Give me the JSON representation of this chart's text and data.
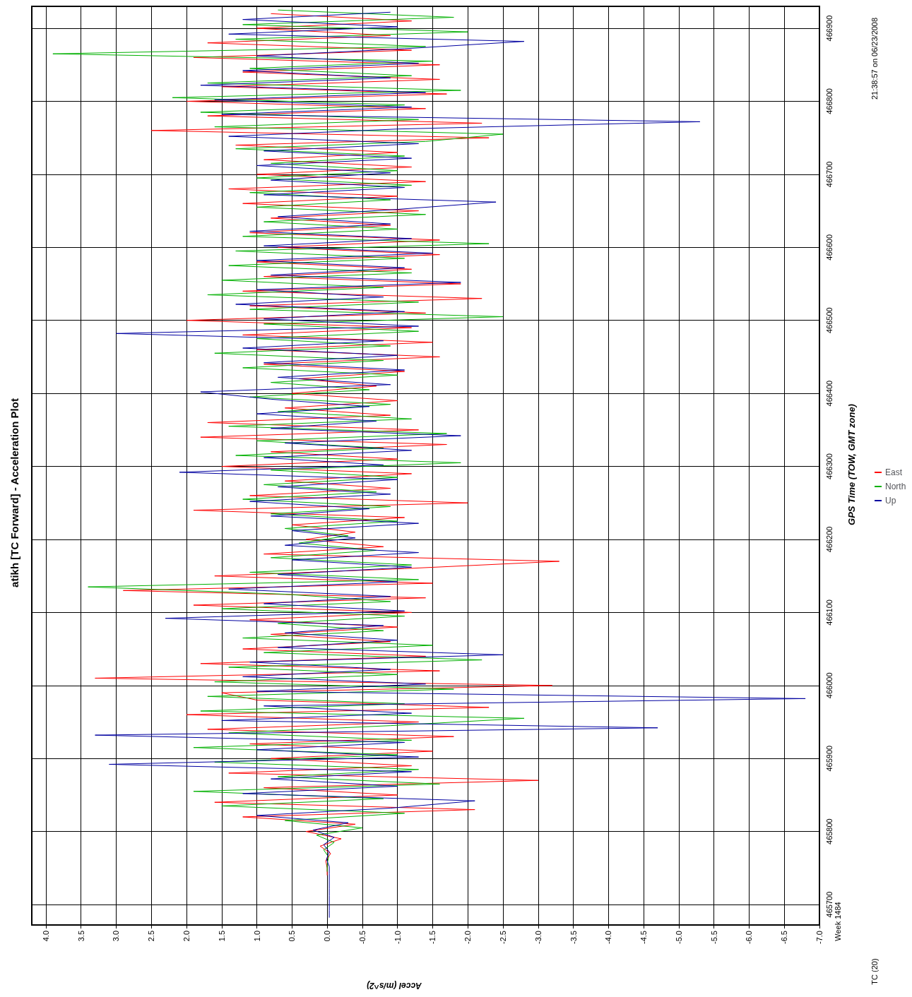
{
  "chart_data": {
    "type": "line",
    "title": "atikh [TC Forward] - Acceleration Plot",
    "xlabel": "Accel (m/s^2)",
    "ylabel": "GPS Time (TOW, GMT zone)",
    "annotations": [
      "Week 1484",
      "TC (20)",
      "21:38:57 on 06/23/2008"
    ],
    "series": [
      {
        "name": "East",
        "color": "#ff0000",
        "x": [
          null,
          null,
          null,
          null,
          null,
          null,
          0,
          0,
          0.02,
          -0.05,
          0.1,
          -0.2,
          0.3,
          -0.4,
          1.2,
          -2.1,
          1.6,
          -1.0,
          0.9,
          -3.0,
          1.4,
          -1.2,
          0.8,
          -1.5,
          1.1,
          -1.8,
          1.7,
          -1.3,
          2.0,
          -2.3,
          1.0,
          1.5,
          -3.2,
          3.3,
          -1.6,
          1.8,
          -1.4,
          1.2,
          -0.9,
          0.8,
          -1.0,
          1.1,
          -1.2,
          1.9,
          -1.4,
          2.9,
          -1.5,
          1.6,
          -1.1,
          -3.3,
          0.9,
          -0.8,
          0.3,
          -0.4,
          0.5,
          -1.1,
          1.9,
          -2.0,
          1.1,
          -0.9,
          0.6,
          -1.2,
          1.5,
          -1.0,
          0.8,
          -1.7,
          1.8,
          -1.3,
          1.7,
          -0.9,
          0.6,
          -1.0,
          0.5,
          -0.7,
          0.4,
          -1.1,
          0.9,
          -1.6,
          1.0,
          -1.5,
          1.2,
          -1.2,
          2.0,
          -1.4,
          1.1,
          -2.2,
          1.2,
          -1.9,
          0.9,
          -1.2,
          1.0,
          -1.6,
          0.7,
          -1.6,
          1.1,
          -0.9,
          0.8,
          -1.3,
          1.2,
          -1.0,
          1.4,
          -1.4,
          1.0,
          -1.2,
          0.9,
          -1.0,
          1.3,
          -2.3,
          2.5,
          -2.2,
          1.7,
          -1.4,
          2.0,
          -1.7,
          1.5,
          -1.6,
          1.2,
          -1.6,
          1.9,
          -1.2,
          1.7,
          -0.9,
          1.0,
          -1.2,
          0.8
        ],
        "values": [
          null,
          null,
          null,
          null,
          null,
          null,
          465740,
          465750,
          465760,
          465770,
          465780,
          465790,
          465800,
          465810,
          465820,
          465830,
          465840,
          465850,
          465860,
          465870,
          465880,
          465890,
          465900,
          465910,
          465920,
          465930,
          465940,
          465950,
          465960,
          465970,
          465980,
          465990,
          466000,
          466010,
          466020,
          466030,
          466040,
          466050,
          466060,
          466070,
          466080,
          466090,
          466100,
          466110,
          466120,
          466130,
          466140,
          466150,
          466160,
          466170,
          466180,
          466190,
          466200,
          466210,
          466220,
          466230,
          466240,
          466250,
          466260,
          466270,
          466280,
          466290,
          466300,
          466310,
          466320,
          466330,
          466340,
          466350,
          466360,
          466370,
          466380,
          466390,
          466400,
          466410,
          466420,
          466430,
          466440,
          466450,
          466460,
          466470,
          466480,
          466490,
          466500,
          466510,
          466520,
          466530,
          466540,
          466550,
          466560,
          466570,
          466580,
          466590,
          466600,
          466610,
          466620,
          466630,
          466640,
          466650,
          466660,
          466670,
          466680,
          466690,
          466700,
          466710,
          466720,
          466730,
          466740,
          466750,
          466760,
          466770,
          466780,
          466790,
          466800,
          466810,
          466820,
          466830,
          466840,
          466850,
          466860,
          466870,
          466880,
          466890,
          466900,
          466910,
          466920
        ]
      },
      {
        "name": "North",
        "color": "#00b000",
        "x": [
          null,
          null,
          null,
          null,
          null,
          null,
          0,
          0,
          -0.02,
          0.05,
          -0.1,
          0.15,
          -0.5,
          0.6,
          -1.1,
          1.5,
          -0.8,
          1.9,
          -1.6,
          0.7,
          -1.3,
          1.6,
          -1.0,
          1.9,
          -1.2,
          1.4,
          -0.9,
          -2.8,
          1.8,
          -1.1,
          1.7,
          -1.8,
          1.6,
          -1.0,
          1.4,
          -2.2,
          0.9,
          -1.5,
          1.2,
          -0.8,
          0.7,
          -1.1,
          1.5,
          -0.9,
          0.6,
          3.4,
          -1.3,
          1.1,
          -1.2,
          0.8,
          -0.7,
          0.4,
          -0.3,
          0.6,
          -1.0,
          0.8,
          -0.9,
          1.2,
          -0.7,
          0.9,
          -1.0,
          0.8,
          -1.9,
          1.3,
          -0.8,
          1.0,
          -1.7,
          1.4,
          -1.2,
          0.7,
          -0.9,
          1.1,
          -0.6,
          0.8,
          -1.0,
          1.2,
          -0.8,
          1.6,
          -0.9,
          1.0,
          -1.3,
          0.9,
          -2.5,
          1.1,
          -1.3,
          1.7,
          -0.8,
          1.5,
          -1.2,
          1.4,
          -1.1,
          1.3,
          -2.3,
          1.2,
          -1.0,
          0.9,
          -1.4,
          1.0,
          -0.9,
          1.1,
          -1.2,
          1.0,
          -1.0,
          0.8,
          -1.1,
          1.3,
          -1.4,
          -2.5,
          1.6,
          -1.3,
          1.8,
          -1.1,
          2.2,
          -1.9,
          1.7,
          -1.2,
          1.1,
          -1.5,
          3.9,
          -1.4,
          1.3,
          -2.0,
          1.2,
          -1.8,
          0.7
        ],
        "values": [
          null,
          null,
          null,
          null,
          null,
          null,
          465745,
          465755,
          465765,
          465775,
          465785,
          465795,
          465805,
          465815,
          465825,
          465835,
          465845,
          465855,
          465865,
          465875,
          465885,
          465895,
          465905,
          465915,
          465925,
          465935,
          465945,
          465955,
          465965,
          465975,
          465985,
          465995,
          466005,
          466015,
          466025,
          466035,
          466045,
          466055,
          466065,
          466075,
          466085,
          466095,
          466105,
          466115,
          466125,
          466135,
          466145,
          466155,
          466165,
          466175,
          466185,
          466195,
          466205,
          466215,
          466225,
          466235,
          466245,
          466255,
          466265,
          466275,
          466285,
          466295,
          466305,
          466315,
          466325,
          466335,
          466345,
          466355,
          466365,
          466375,
          466385,
          466395,
          466405,
          466415,
          466425,
          466435,
          466445,
          466455,
          466465,
          466475,
          466485,
          466495,
          466505,
          466515,
          466525,
          466535,
          466545,
          466555,
          466565,
          466575,
          466585,
          466595,
          466605,
          466615,
          466625,
          466635,
          466645,
          466655,
          466665,
          466675,
          466685,
          466695,
          466705,
          466715,
          466725,
          466735,
          466745,
          466755,
          466765,
          466775,
          466785,
          466795,
          466805,
          466815,
          466825,
          466835,
          466845,
          466855,
          466865,
          466875,
          466885,
          466895,
          466905,
          466915,
          466925
        ]
      },
      {
        "name": "Up",
        "color": "#0000a0",
        "x": [
          -0.03,
          -0.03,
          -0.03,
          -0.03,
          -0.03,
          -0.03,
          -0.03,
          -0.03,
          0.01,
          -0.03,
          0.05,
          -0.1,
          0.2,
          -0.3,
          1.0,
          -0.9,
          -2.1,
          1.2,
          -1.0,
          0.8,
          -1.2,
          3.1,
          -1.3,
          1.0,
          -1.1,
          3.3,
          -4.7,
          1.5,
          -1.2,
          0.9,
          -6.8,
          1.0,
          -1.4,
          1.2,
          -0.9,
          1.1,
          -2.5,
          0.7,
          -1.0,
          0.6,
          -0.8,
          2.3,
          -1.1,
          0.9,
          -0.9,
          1.4,
          -1.0,
          0.7,
          -1.2,
          0.5,
          -1.3,
          0.6,
          -0.4,
          0.5,
          -1.3,
          0.8,
          -0.6,
          1.1,
          -0.9,
          0.7,
          -1.0,
          2.1,
          -0.8,
          0.9,
          -1.2,
          0.6,
          -1.9,
          0.8,
          -0.7,
          1.0,
          -0.6,
          0.8,
          1.8,
          -0.9,
          0.7,
          -1.1,
          0.9,
          -1.0,
          1.2,
          -0.8,
          3.0,
          -1.3,
          0.9,
          -1.1,
          1.3,
          -0.8,
          1.0,
          -1.9,
          0.8,
          -1.1,
          1.0,
          -1.5,
          0.9,
          -1.2,
          1.1,
          -0.9,
          0.7,
          -1.0,
          -2.4,
          0.9,
          -1.1,
          0.8,
          -0.9,
          1.0,
          -1.2,
          0.9,
          -1.3,
          1.4,
          -1.0,
          -5.3,
          1.5,
          -1.2,
          1.6,
          -1.4,
          1.8,
          -0.9,
          1.2,
          -1.3,
          1.0,
          -1.1,
          -2.8,
          1.4,
          -1.0,
          1.2,
          -0.9
        ],
        "values": [
          465682,
          465692,
          465702,
          465712,
          465722,
          465732,
          465742,
          465752,
          465762,
          465772,
          465782,
          465792,
          465802,
          465812,
          465822,
          465832,
          465842,
          465852,
          465862,
          465872,
          465882,
          465892,
          465902,
          465912,
          465922,
          465932,
          465942,
          465952,
          465962,
          465972,
          465982,
          465992,
          466002,
          466012,
          466022,
          466032,
          466042,
          466052,
          466062,
          466072,
          466082,
          466092,
          466102,
          466112,
          466122,
          466132,
          466142,
          466152,
          466162,
          466172,
          466182,
          466192,
          466202,
          466212,
          466222,
          466232,
          466242,
          466252,
          466262,
          466272,
          466282,
          466292,
          466302,
          466312,
          466322,
          466332,
          466342,
          466352,
          466362,
          466372,
          466382,
          466392,
          466402,
          466412,
          466422,
          466432,
          466442,
          466452,
          466462,
          466472,
          466482,
          466492,
          466502,
          466512,
          466522,
          466532,
          466542,
          466552,
          466562,
          466572,
          466582,
          466592,
          466602,
          466612,
          466622,
          466632,
          466642,
          466652,
          466662,
          466672,
          466682,
          466692,
          466702,
          466712,
          466722,
          466732,
          466742,
          466752,
          466762,
          466772,
          466782,
          466792,
          466802,
          466812,
          466822,
          466832,
          466842,
          466852,
          466862,
          466872,
          466882,
          466892,
          466902,
          466912,
          466922
        ]
      }
    ],
    "ylim": [
      465672,
      466930
    ],
    "yticks": [
      465700,
      465800,
      465900,
      466000,
      466100,
      466200,
      466300,
      466400,
      466500,
      466600,
      466700,
      466800,
      466900
    ],
    "xlim": [
      4.2,
      -7.0
    ],
    "xticks": [
      {
        "value": 4,
        "label": "4.0"
      },
      3.5,
      {
        "value": 3,
        "label": "3.0"
      },
      2.5,
      {
        "value": 2,
        "label": "2.0"
      },
      1.5,
      {
        "value": 1,
        "label": "1.0"
      },
      0.5,
      {
        "value": 0,
        "label": "0.0"
      },
      -0.5,
      {
        "value": -1,
        "label": "-1.0"
      },
      -1.5,
      {
        "value": -2,
        "label": "-2.0"
      },
      -2.5,
      {
        "value": -3,
        "label": "-3.0"
      },
      -3.5,
      {
        "value": -4,
        "label": "-4.0"
      },
      -4.5,
      {
        "value": -5,
        "label": "-5.0"
      },
      -5.5,
      {
        "value": -6,
        "label": "-6.0"
      },
      -6.5,
      {
        "value": -7,
        "label": "-7.0"
      }
    ],
    "grid": true,
    "legend": "right",
    "marker": "none",
    "line_style": "solid"
  }
}
